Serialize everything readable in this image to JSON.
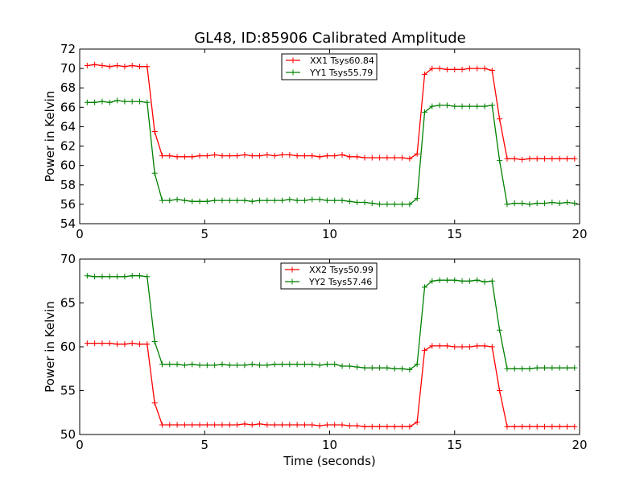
{
  "title": "GL48, ID:85906 Calibrated Amplitude",
  "chart_data": [
    {
      "type": "line",
      "ylabel": "Power in Kelvin",
      "xlabel": "",
      "xlim": [
        0,
        20
      ],
      "ylim": [
        54,
        72
      ],
      "xticks": [
        0,
        5,
        10,
        15,
        20
      ],
      "yticks": [
        54,
        56,
        58,
        60,
        62,
        64,
        66,
        68,
        70,
        72
      ],
      "grid": false,
      "legend_position": "top-center",
      "x": [
        0.3,
        0.6,
        0.9,
        1.2,
        1.5,
        1.8,
        2.1,
        2.4,
        2.7,
        3.0,
        3.3,
        3.6,
        3.9,
        4.2,
        4.5,
        4.8,
        5.1,
        5.4,
        5.7,
        6.0,
        6.3,
        6.6,
        6.9,
        7.2,
        7.5,
        7.8,
        8.1,
        8.4,
        8.7,
        9.0,
        9.3,
        9.6,
        9.9,
        10.2,
        10.5,
        10.8,
        11.1,
        11.4,
        11.7,
        12.0,
        12.3,
        12.6,
        12.9,
        13.2,
        13.5,
        13.8,
        14.1,
        14.4,
        14.7,
        15.0,
        15.3,
        15.6,
        15.9,
        16.2,
        16.5,
        16.8,
        17.1,
        17.4,
        17.7,
        18.0,
        18.3,
        18.6,
        18.9,
        19.2,
        19.5,
        19.8
      ],
      "series": [
        {
          "name": "XX1 Tsys60.84",
          "color": "#ff0000",
          "values": [
            70.3,
            70.4,
            70.3,
            70.2,
            70.3,
            70.2,
            70.3,
            70.2,
            70.2,
            63.5,
            61.0,
            61.0,
            60.9,
            60.9,
            60.9,
            61.0,
            61.0,
            61.1,
            61.0,
            61.0,
            61.0,
            61.1,
            61.0,
            61.0,
            61.1,
            61.0,
            61.1,
            61.1,
            61.0,
            61.0,
            61.0,
            60.9,
            61.0,
            61.0,
            61.1,
            60.9,
            60.9,
            60.8,
            60.8,
            60.8,
            60.8,
            60.8,
            60.8,
            60.7,
            61.2,
            69.4,
            70.0,
            70.0,
            69.9,
            69.9,
            69.9,
            70.0,
            70.0,
            70.0,
            69.8,
            64.8,
            60.7,
            60.7,
            60.6,
            60.7,
            60.7,
            60.7,
            60.7,
            60.7,
            60.7,
            60.7
          ]
        },
        {
          "name": "YY1 Tsys55.79",
          "color": "#008000",
          "values": [
            66.5,
            66.5,
            66.6,
            66.5,
            66.7,
            66.6,
            66.6,
            66.6,
            66.5,
            59.2,
            56.4,
            56.4,
            56.5,
            56.4,
            56.3,
            56.3,
            56.3,
            56.4,
            56.4,
            56.4,
            56.4,
            56.4,
            56.3,
            56.4,
            56.4,
            56.4,
            56.4,
            56.5,
            56.4,
            56.4,
            56.5,
            56.5,
            56.4,
            56.4,
            56.4,
            56.3,
            56.2,
            56.2,
            56.1,
            56.0,
            56.0,
            56.0,
            56.0,
            56.0,
            56.6,
            65.5,
            66.1,
            66.2,
            66.2,
            66.1,
            66.1,
            66.1,
            66.1,
            66.1,
            66.2,
            60.5,
            56.0,
            56.1,
            56.1,
            56.0,
            56.1,
            56.1,
            56.2,
            56.1,
            56.2,
            56.1
          ]
        }
      ]
    },
    {
      "type": "line",
      "ylabel": "Power in Kelvin",
      "xlabel": "Time (seconds)",
      "xlim": [
        0,
        20
      ],
      "ylim": [
        50,
        70
      ],
      "xticks": [
        0,
        5,
        10,
        15,
        20
      ],
      "yticks": [
        50,
        55,
        60,
        65,
        70
      ],
      "grid": false,
      "legend_position": "top-center",
      "x": [
        0.3,
        0.6,
        0.9,
        1.2,
        1.5,
        1.8,
        2.1,
        2.4,
        2.7,
        3.0,
        3.3,
        3.6,
        3.9,
        4.2,
        4.5,
        4.8,
        5.1,
        5.4,
        5.7,
        6.0,
        6.3,
        6.6,
        6.9,
        7.2,
        7.5,
        7.8,
        8.1,
        8.4,
        8.7,
        9.0,
        9.3,
        9.6,
        9.9,
        10.2,
        10.5,
        10.8,
        11.1,
        11.4,
        11.7,
        12.0,
        12.3,
        12.6,
        12.9,
        13.2,
        13.5,
        13.8,
        14.1,
        14.4,
        14.7,
        15.0,
        15.3,
        15.6,
        15.9,
        16.2,
        16.5,
        16.8,
        17.1,
        17.4,
        17.7,
        18.0,
        18.3,
        18.6,
        18.9,
        19.2,
        19.5,
        19.8
      ],
      "series": [
        {
          "name": "XX2 Tsys50.99",
          "color": "#ff0000",
          "values": [
            60.4,
            60.4,
            60.4,
            60.4,
            60.3,
            60.3,
            60.4,
            60.3,
            60.3,
            53.6,
            51.1,
            51.1,
            51.1,
            51.1,
            51.1,
            51.1,
            51.1,
            51.1,
            51.1,
            51.1,
            51.1,
            51.2,
            51.1,
            51.2,
            51.1,
            51.1,
            51.1,
            51.1,
            51.1,
            51.1,
            51.1,
            51.0,
            51.1,
            51.1,
            51.1,
            51.0,
            51.0,
            50.9,
            50.9,
            50.9,
            50.9,
            50.9,
            50.9,
            50.9,
            51.4,
            59.6,
            60.1,
            60.1,
            60.1,
            60.0,
            60.0,
            60.0,
            60.1,
            60.1,
            60.0,
            55.0,
            50.9,
            50.9,
            50.9,
            50.9,
            50.9,
            50.9,
            50.9,
            50.9,
            50.9,
            50.9
          ]
        },
        {
          "name": "YY2 Tsys57.46",
          "color": "#008000",
          "values": [
            68.1,
            68.0,
            68.0,
            68.0,
            68.0,
            68.0,
            68.1,
            68.1,
            68.0,
            60.6,
            58.0,
            58.0,
            58.0,
            57.9,
            58.0,
            57.9,
            57.9,
            57.9,
            58.0,
            57.9,
            57.9,
            57.9,
            58.0,
            57.9,
            57.9,
            58.0,
            58.0,
            58.0,
            58.0,
            58.0,
            58.0,
            57.9,
            58.0,
            58.0,
            57.8,
            57.8,
            57.7,
            57.6,
            57.6,
            57.6,
            57.6,
            57.5,
            57.5,
            57.4,
            58.0,
            66.8,
            67.5,
            67.6,
            67.6,
            67.6,
            67.5,
            67.5,
            67.6,
            67.4,
            67.5,
            61.9,
            57.5,
            57.5,
            57.5,
            57.5,
            57.6,
            57.6,
            57.6,
            57.6,
            57.6,
            57.6
          ]
        }
      ]
    }
  ]
}
